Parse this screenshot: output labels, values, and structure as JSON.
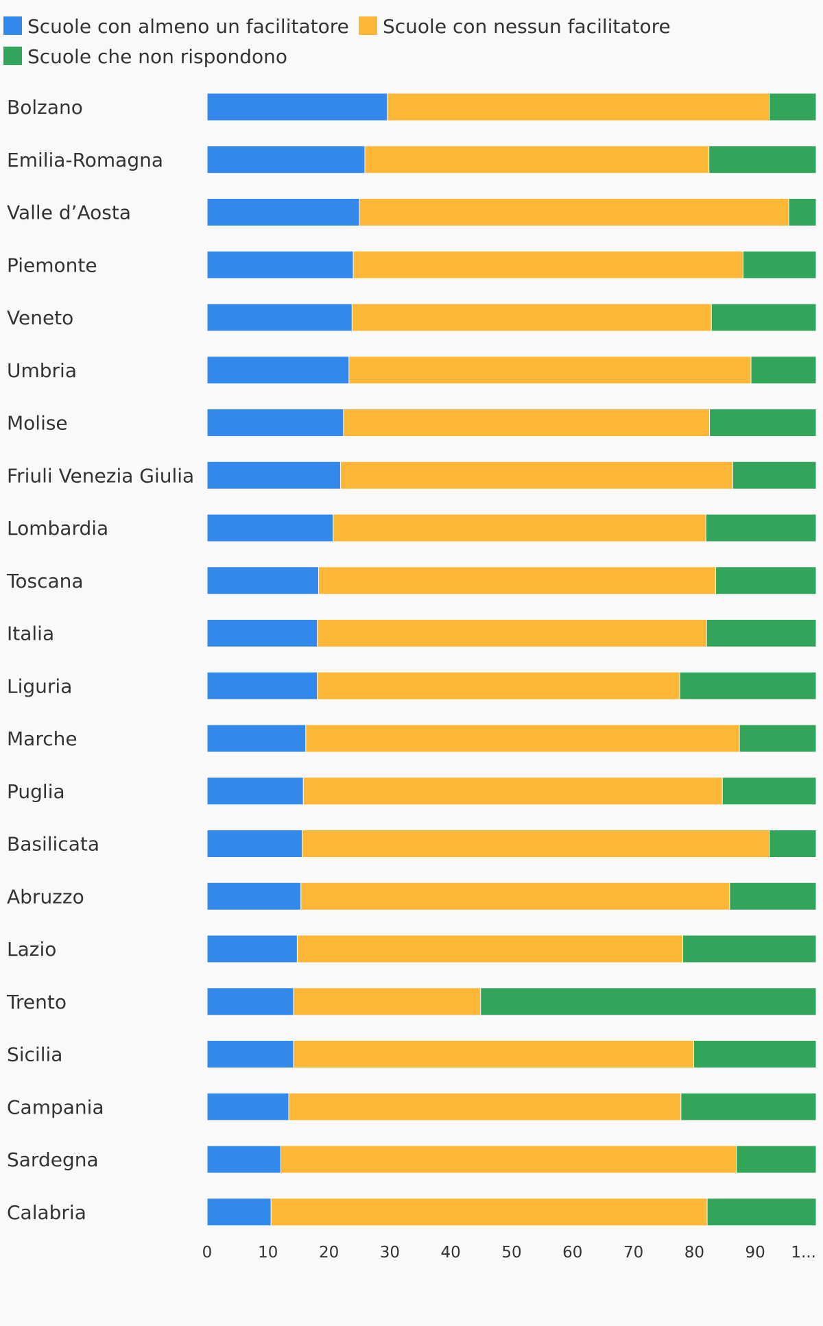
{
  "chart_data": {
    "type": "bar",
    "orientation": "horizontal",
    "stacked": true,
    "legend": {
      "position": "top-left",
      "items": [
        {
          "label": "Scuole con almeno un facilitatore",
          "color": "#3389eb"
        },
        {
          "label": "Scuole con nessun facilitatore",
          "color": "#fdb737"
        },
        {
          "label": "Scuole che non rispondono",
          "color": "#32a55b"
        }
      ]
    },
    "categories": [
      "Bolzano",
      "Emilia-Romagna",
      "Valle d’Aosta",
      "Piemonte",
      "Veneto",
      "Umbria",
      "Molise",
      "Friuli Venezia Giulia",
      "Lombardia",
      "Toscana",
      "Italia",
      "Liguria",
      "Marche",
      "Puglia",
      "Basilicata",
      "Abruzzo",
      "Lazio",
      "Trento",
      "Sicilia",
      "Campania",
      "Sardegna",
      "Calabria"
    ],
    "series": [
      {
        "name": "Scuole con almeno un facilitatore",
        "color": "#3389eb",
        "values": [
          29.6,
          25.9,
          25.0,
          24.0,
          23.8,
          23.3,
          22.4,
          21.9,
          20.7,
          18.3,
          18.1,
          18.1,
          16.2,
          15.8,
          15.6,
          15.4,
          14.8,
          14.2,
          14.2,
          13.4,
          12.1,
          10.5
        ]
      },
      {
        "name": "Scuole con nessun facilitatore",
        "color": "#fdb737",
        "values": [
          62.7,
          56.5,
          70.5,
          64.0,
          59.0,
          66.0,
          60.1,
          64.4,
          61.2,
          65.2,
          63.9,
          59.5,
          71.2,
          68.8,
          76.7,
          70.4,
          63.3,
          30.7,
          65.7,
          64.4,
          74.8,
          71.6
        ]
      },
      {
        "name": "Scuole che non rispondono",
        "color": "#32a55b",
        "values": [
          7.7,
          17.6,
          4.5,
          12.0,
          17.2,
          10.7,
          17.5,
          13.7,
          18.1,
          16.5,
          18.0,
          22.4,
          12.6,
          15.4,
          7.7,
          14.2,
          21.9,
          55.1,
          20.1,
          22.2,
          13.1,
          17.9
        ]
      }
    ],
    "x_ticks": [
      "0",
      "10",
      "20",
      "30",
      "40",
      "50",
      "60",
      "70",
      "80",
      "90",
      "1..."
    ],
    "xlim": [
      0,
      100
    ],
    "grid": false
  }
}
